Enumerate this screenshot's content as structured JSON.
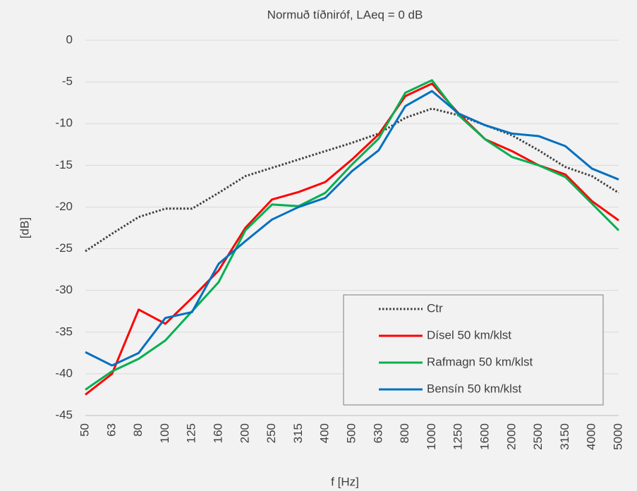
{
  "chart_data": {
    "type": "line",
    "title": "Normuð tíðniróf, LAeq = 0 dB",
    "xlabel": "f [Hz]",
    "ylabel": "[dB]",
    "categories": [
      "50",
      "63",
      "80",
      "100",
      "125",
      "160",
      "200",
      "250",
      "315",
      "400",
      "500",
      "630",
      "800",
      "1000",
      "1250",
      "1600",
      "2000",
      "2500",
      "3150",
      "4000",
      "5000"
    ],
    "series": [
      {
        "name": "Ctr",
        "color": "#404040",
        "dashed": true,
        "values": [
          -25.3,
          -23.2,
          -21.2,
          -20.2,
          -20.2,
          -18.3,
          -16.3,
          -15.3,
          -14.3,
          -13.3,
          -12.3,
          -11.2,
          -9.3,
          -8.2,
          -9.0,
          -10.2,
          -11.4,
          -13.2,
          -15.2,
          -16.3,
          -18.3
        ]
      },
      {
        "name": "Dísel 50 km/klst",
        "color": "#ff0000",
        "values": [
          -42.5,
          -40.0,
          -32.3,
          -34.0,
          -30.9,
          -27.6,
          -22.5,
          -19.1,
          -18.2,
          -17.0,
          -14.3,
          -11.3,
          -6.7,
          -5.2,
          -8.8,
          -11.9,
          -13.3,
          -15.0,
          -16.1,
          -19.3,
          -21.6
        ]
      },
      {
        "name": "Rafmagn 50 km/klst",
        "color": "#00b050",
        "values": [
          -41.9,
          -39.7,
          -38.2,
          -36.0,
          -32.5,
          -29.0,
          -22.8,
          -19.7,
          -19.9,
          -18.3,
          -14.9,
          -11.8,
          -6.3,
          -4.8,
          -9.0,
          -11.9,
          -14.0,
          -15.0,
          -16.4,
          -19.6,
          -22.8
        ]
      },
      {
        "name": "Bensín 50 km/klst",
        "color": "#0070c0",
        "values": [
          -37.4,
          -39.0,
          -37.5,
          -33.3,
          -32.6,
          -26.8,
          -24.1,
          -21.5,
          -20.0,
          -18.9,
          -15.7,
          -13.2,
          -7.9,
          -6.1,
          -8.8,
          -10.2,
          -11.2,
          -11.5,
          -12.7,
          -15.4,
          -16.7
        ]
      }
    ],
    "ylim": [
      -45,
      0
    ],
    "yticks": [
      0,
      -5,
      -10,
      -15,
      -20,
      -25,
      -30,
      -35,
      -40,
      -45
    ],
    "grid": true,
    "legend": "lower right"
  }
}
